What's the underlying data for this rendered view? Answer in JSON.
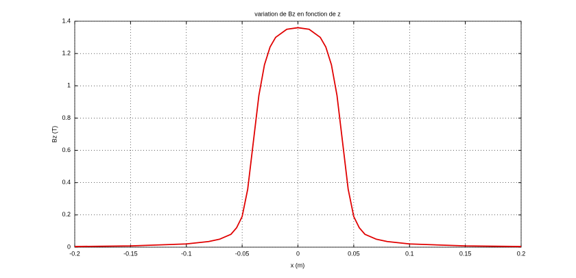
{
  "chart_data": {
    "type": "line",
    "title": "variation de Bz en fonction de z",
    "x_label": "x (m)",
    "y_label": "Bz (T)",
    "x": [
      -0.2,
      -0.15,
      -0.1,
      -0.08,
      -0.07,
      -0.06,
      -0.055,
      -0.05,
      -0.045,
      -0.04,
      -0.035,
      -0.03,
      -0.025,
      -0.02,
      -0.01,
      0,
      0.01,
      0.02,
      0.025,
      0.03,
      0.035,
      0.04,
      0.045,
      0.05,
      0.055,
      0.06,
      0.07,
      0.08,
      0.1,
      0.15,
      0.2
    ],
    "series": [
      {
        "name": "Bz",
        "color": "#e00000",
        "values": [
          0.004,
          0.008,
          0.02,
          0.035,
          0.05,
          0.08,
          0.12,
          0.19,
          0.36,
          0.65,
          0.94,
          1.13,
          1.24,
          1.3,
          1.35,
          1.36,
          1.35,
          1.3,
          1.24,
          1.13,
          0.94,
          0.65,
          0.36,
          0.19,
          0.12,
          0.08,
          0.05,
          0.035,
          0.02,
          0.008,
          0.004
        ]
      }
    ],
    "xlim": [
      -0.2,
      0.2
    ],
    "xticks": [
      -0.2,
      -0.15,
      -0.1,
      -0.05,
      0,
      0.05,
      0.1,
      0.15,
      0.2
    ],
    "ylim": [
      0,
      1.4
    ],
    "yticks": [
      0,
      0.2,
      0.4,
      0.6,
      0.8,
      1,
      1.2,
      1.4
    ],
    "grid": true
  }
}
